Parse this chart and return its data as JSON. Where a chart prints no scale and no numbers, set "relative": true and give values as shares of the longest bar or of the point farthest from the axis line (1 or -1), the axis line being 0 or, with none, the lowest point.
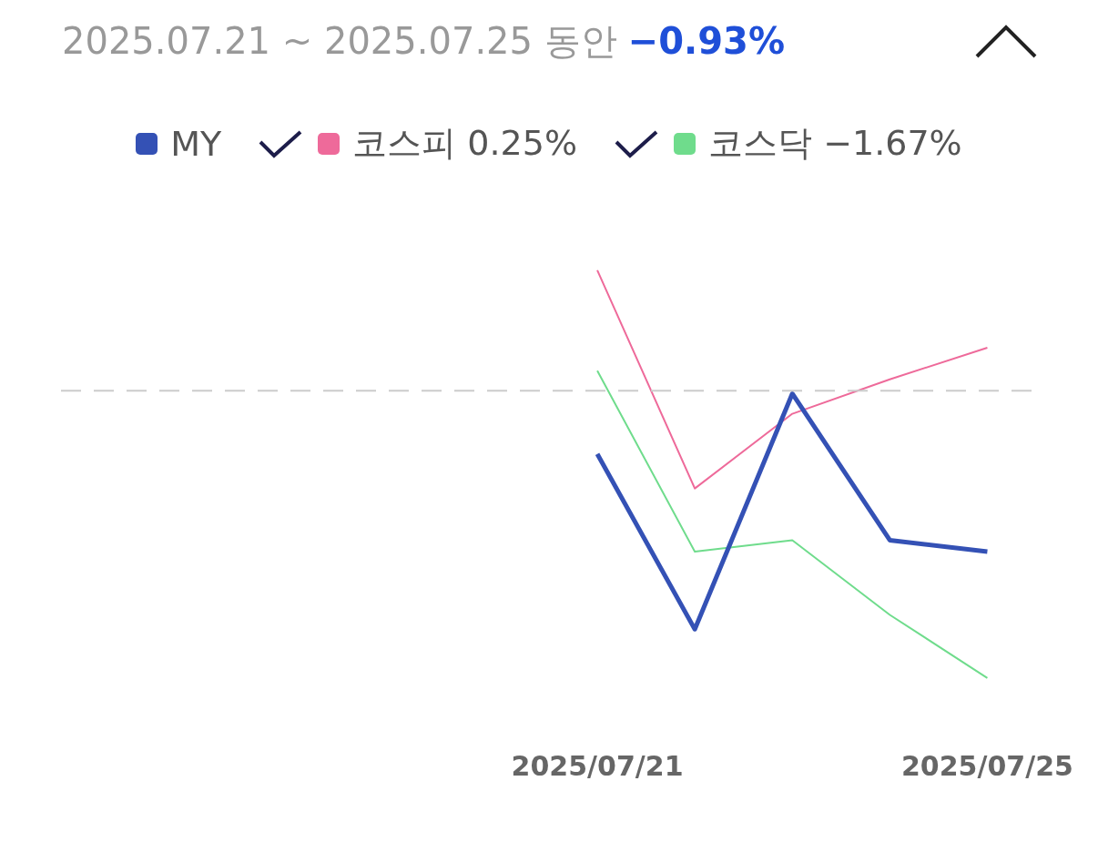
{
  "chart_data": {
    "type": "line",
    "title": "2025.07.21 ~ 2025.07.25 동안",
    "annotations": [
      "−0.93%"
    ],
    "relative": true,
    "legend": "top",
    "grid": false,
    "marker": "none",
    "categories": [
      null,
      null,
      null,
      null,
      null,
      "2025/07/21",
      null,
      null,
      null,
      "2025/07/25"
    ],
    "ref_lines": [
      {
        "axis": "y",
        "value": 0,
        "color": "#cccccc",
        "line_style": "dashed"
      }
    ],
    "series": [
      {
        "name": "MY",
        "color": "#3451b5",
        "values": [
          null,
          null,
          null,
          null,
          null,
          -0.22,
          -0.83,
          -0.01,
          -0.52,
          -0.56
        ]
      },
      {
        "name": "코스피 0.25%",
        "color": "#ee6a9a",
        "values": [
          null,
          null,
          null,
          null,
          null,
          0.42,
          -0.34,
          -0.08,
          0.04,
          0.15
        ]
      },
      {
        "name": "코스닥 −1.67%",
        "color": "#6fdc8c",
        "values": [
          null,
          null,
          null,
          null,
          null,
          0.07,
          -0.56,
          -0.52,
          -0.78,
          -1
        ]
      }
    ]
  }
}
